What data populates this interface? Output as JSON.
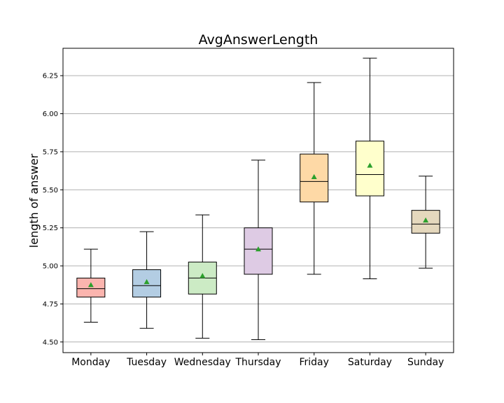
{
  "chart_data": {
    "type": "box",
    "title": "AvgAnswerLength",
    "xlabel": "",
    "ylabel": "length of answer",
    "ylim": [
      4.43,
      6.43
    ],
    "yticks": [
      4.5,
      4.75,
      5.0,
      5.25,
      5.5,
      5.75,
      6.0,
      6.25
    ],
    "ytick_labels": [
      "4.50",
      "4.75",
      "5.00",
      "5.25",
      "5.50",
      "5.75",
      "6.00",
      "6.25"
    ],
    "grid": "horizontal",
    "legend": "none",
    "mean_marker_color": "#2ca02c",
    "categories": [
      "Monday",
      "Tuesday",
      "Wednesday",
      "Thursday",
      "Friday",
      "Saturday",
      "Sunday"
    ],
    "boxes": [
      {
        "category": "Monday",
        "whisker_low": 4.63,
        "q1": 4.795,
        "median": 4.85,
        "q3": 4.92,
        "whisker_high": 5.11,
        "mean": 4.875,
        "color": "#fbb4ae"
      },
      {
        "category": "Tuesday",
        "whisker_low": 4.59,
        "q1": 4.795,
        "median": 4.87,
        "q3": 4.975,
        "whisker_high": 5.225,
        "mean": 4.895,
        "color": "#b3cde3"
      },
      {
        "category": "Wednesday",
        "whisker_low": 4.525,
        "q1": 4.815,
        "median": 4.92,
        "q3": 5.025,
        "whisker_high": 5.335,
        "mean": 4.935,
        "color": "#ccebc5"
      },
      {
        "category": "Thursday",
        "whisker_low": 4.515,
        "q1": 4.945,
        "median": 5.11,
        "q3": 5.25,
        "whisker_high": 5.695,
        "mean": 5.11,
        "color": "#decbe4"
      },
      {
        "category": "Friday",
        "whisker_low": 4.945,
        "q1": 5.42,
        "median": 5.555,
        "q3": 5.735,
        "whisker_high": 6.205,
        "mean": 5.585,
        "color": "#fed9a6"
      },
      {
        "category": "Saturday",
        "whisker_low": 4.915,
        "q1": 5.46,
        "median": 5.6,
        "q3": 5.82,
        "whisker_high": 6.365,
        "mean": 5.66,
        "color": "#ffffcc"
      },
      {
        "category": "Sunday",
        "whisker_low": 4.985,
        "q1": 5.215,
        "median": 5.275,
        "q3": 5.365,
        "whisker_high": 5.59,
        "mean": 5.3,
        "color": "#e5d8bd"
      }
    ]
  }
}
